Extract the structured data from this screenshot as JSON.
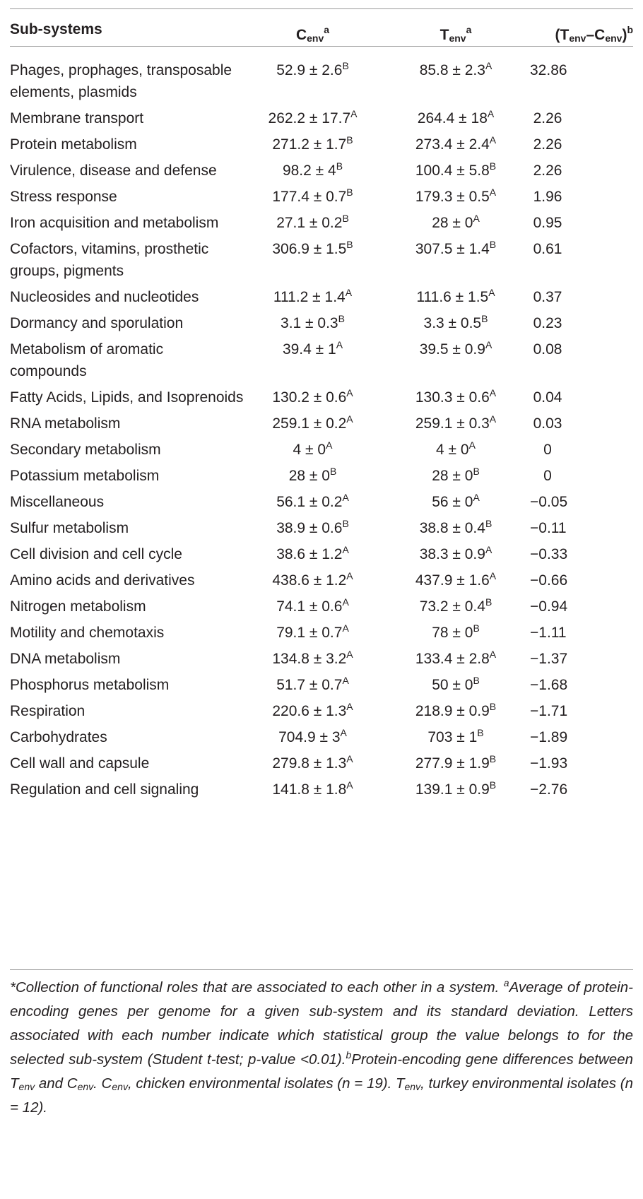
{
  "header": {
    "col1": "Sub-systems",
    "col2": {
      "base": "C",
      "sub": "env",
      "sup": "a"
    },
    "col3": {
      "base": "T",
      "sub": "env",
      "sup": "a"
    },
    "col4": {
      "open": "(T",
      "sub1": "env",
      "mid": "–C",
      "sub2": "env",
      "close": ")",
      "sup": "b"
    }
  },
  "rows": [
    {
      "name": "Phages, prophages, transposable elements, plasmids",
      "c": "52.9 ± 2.6",
      "cs": "B",
      "t": "85.8 ± 2.3",
      "ts": "A",
      "d": "32.86"
    },
    {
      "name": "Membrane transport",
      "c": "262.2 ± 17.7",
      "cs": "A",
      "t": "264.4 ± 18",
      "ts": "A",
      "d": "2.26"
    },
    {
      "name": "Protein metabolism",
      "c": "271.2 ± 1.7",
      "cs": "B",
      "t": "273.4 ± 2.4",
      "ts": "A",
      "d": "2.26"
    },
    {
      "name": "Virulence, disease and defense",
      "c": "98.2 ± 4",
      "cs": "B",
      "t": "100.4 ± 5.8",
      "ts": "B",
      "d": "2.26"
    },
    {
      "name": "Stress response",
      "c": "177.4 ± 0.7",
      "cs": "B",
      "t": "179.3 ± 0.5",
      "ts": "A",
      "d": "1.96"
    },
    {
      "name": "Iron acquisition and metabolism",
      "c": "27.1 ± 0.2",
      "cs": "B",
      "t": "28 ± 0",
      "ts": "A",
      "d": "0.95"
    },
    {
      "name": "Cofactors, vitamins, prosthetic groups, pigments",
      "c": "306.9 ± 1.5",
      "cs": "B",
      "t": "307.5 ± 1.4",
      "ts": "B",
      "d": "0.61"
    },
    {
      "name": "Nucleosides and nucleotides",
      "c": "111.2 ± 1.4",
      "cs": "A",
      "t": "111.6 ± 1.5",
      "ts": "A",
      "d": "0.37"
    },
    {
      "name": "Dormancy and sporulation",
      "c": "3.1 ± 0.3",
      "cs": "B",
      "t": "3.3 ± 0.5",
      "ts": "B",
      "d": "0.23"
    },
    {
      "name": "Metabolism of aromatic compounds",
      "c": "39.4 ± 1",
      "cs": "A",
      "t": "39.5 ± 0.9",
      "ts": "A",
      "d": "0.08"
    },
    {
      "name": "Fatty Acids, Lipids, and Isoprenoids",
      "c": "130.2 ± 0.6",
      "cs": "A",
      "t": "130.3 ± 0.6",
      "ts": "A",
      "d": "0.04"
    },
    {
      "name": "RNA metabolism",
      "c": "259.1 ± 0.2",
      "cs": "A",
      "t": "259.1 ± 0.3",
      "ts": "A",
      "d": "0.03"
    },
    {
      "name": "Secondary metabolism",
      "c": "4 ± 0",
      "cs": "A",
      "t": "4 ± 0",
      "ts": "A",
      "d": "0"
    },
    {
      "name": "Potassium metabolism",
      "c": "28 ± 0",
      "cs": "B",
      "t": "28 ± 0",
      "ts": "B",
      "d": "0"
    },
    {
      "name": "Miscellaneous",
      "c": "56.1 ± 0.2",
      "cs": "A",
      "t": "56 ± 0",
      "ts": "A",
      "d": "−0.05"
    },
    {
      "name": "Sulfur metabolism",
      "c": "38.9 ± 0.6",
      "cs": "B",
      "t": "38.8 ± 0.4",
      "ts": "B",
      "d": "−0.11"
    },
    {
      "name": "Cell division and cell cycle",
      "c": "38.6 ± 1.2",
      "cs": "A",
      "t": "38.3 ± 0.9",
      "ts": "A",
      "d": "−0.33"
    },
    {
      "name": "Amino acids and derivatives",
      "c": "438.6 ± 1.2",
      "cs": "A",
      "t": "437.9 ± 1.6",
      "ts": "A",
      "d": "−0.66"
    },
    {
      "name": "Nitrogen metabolism",
      "c": "74.1 ± 0.6",
      "cs": "A",
      "t": "73.2 ± 0.4",
      "ts": "B",
      "d": "−0.94"
    },
    {
      "name": "Motility and chemotaxis",
      "c": "79.1 ± 0.7",
      "cs": "A",
      "t": "78 ± 0",
      "ts": "B",
      "d": "−1.11"
    },
    {
      "name": "DNA metabolism",
      "c": "134.8 ± 3.2",
      "cs": "A",
      "t": "133.4 ± 2.8",
      "ts": "A",
      "d": "−1.37"
    },
    {
      "name": "Phosphorus metabolism",
      "c": "51.7 ± 0.7",
      "cs": "A",
      "t": "50 ± 0",
      "ts": "B",
      "d": "−1.68"
    },
    {
      "name": "Respiration",
      "c": "220.6 ± 1.3",
      "cs": "A",
      "t": "218.9 ± 0.9",
      "ts": "B",
      "d": "−1.71"
    },
    {
      "name": "Carbohydrates",
      "c": "704.9 ± 3",
      "cs": "A",
      "t": "703 ± 1",
      "ts": "B",
      "d": "−1.89"
    },
    {
      "name": "Cell wall and capsule",
      "c": "279.8 ± 1.3",
      "cs": "A",
      "t": "277.9 ± 1.9",
      "ts": "B",
      "d": "−1.93"
    },
    {
      "name": "Regulation and cell signaling",
      "c": "141.8 ± 1.8",
      "cs": "A",
      "t": "139.1 ± 0.9",
      "ts": "B",
      "d": "−2.76"
    }
  ],
  "footnote": {
    "star": "*Collection of functional roles that are associated to each other in a system. ",
    "a_mark": "a",
    "a_text": "Average of protein-encoding genes per genome for a given sub-system and its standard deviation. Letters associated with each number indicate which statistical group the value belongs to for the selected sub-system (Student t-test; p-value <0.01).",
    "b_mark": "b",
    "b_text1": "Protein-encoding gene differences between T",
    "env": "env",
    "b_text2": " and C",
    "b_text3": ". C",
    "b_text4": ", chicken environmental isolates (n = 19). T",
    "b_text5": ", turkey environmental isolates (n = 12)."
  }
}
